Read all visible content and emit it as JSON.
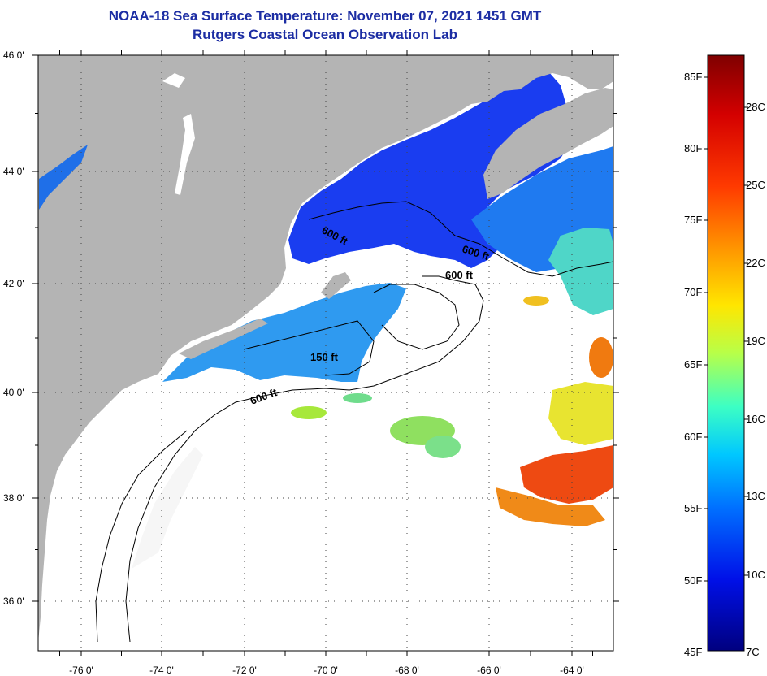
{
  "header": {
    "title_line1": "NOAA-18 Sea Surface Temperature:  November 07, 2021 1451 GMT",
    "title_line2": "Rutgers Coastal Ocean Observation Lab"
  },
  "map": {
    "latitude_labels": [
      "46 0'",
      "44 0'",
      "42 0'",
      "40 0'",
      "38 0'",
      "36 0'"
    ],
    "longitude_labels": [
      "-76 0'",
      "-74 0'",
      "-72 0'",
      "-70 0'",
      "-68 0'",
      "-66 0'",
      "-64 0'"
    ],
    "depth_contour_labels": [
      "600 ft",
      "600 ft",
      "600 ft",
      "150 ft",
      "600 ft"
    ],
    "colors": {
      "land": "#b4b4b4",
      "cloud_no_data": "#ffffff",
      "grid_dots": "#444444",
      "contour": "#000000"
    }
  },
  "colorbar": {
    "fahrenheit_labels": [
      "85F",
      "80F",
      "75F",
      "70F",
      "65F",
      "60F",
      "55F",
      "50F",
      "45F"
    ],
    "celsius_labels": [
      "28C",
      "25C",
      "22C",
      "19C",
      "16C",
      "13C",
      "10C",
      "7C"
    ],
    "gradient_colors_top_to_bottom": [
      "#7f0000",
      "#d40000",
      "#ff3a00",
      "#ff9a00",
      "#ffe600",
      "#b8ff48",
      "#3cffc4",
      "#00c8ff",
      "#0070ff",
      "#0010e8",
      "#00007f"
    ]
  }
}
